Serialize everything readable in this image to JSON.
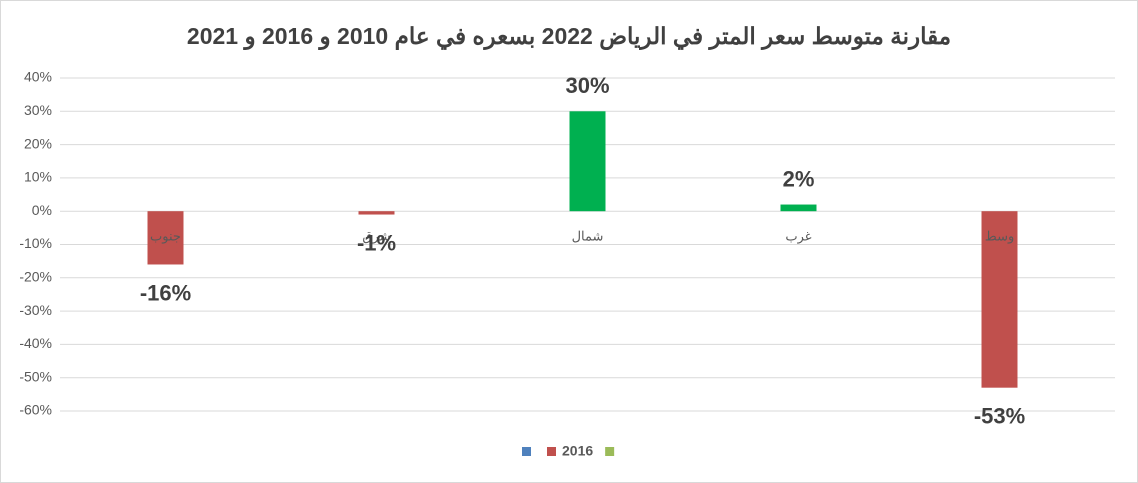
{
  "chart_data": {
    "type": "bar",
    "title": "مقارنة متوسط سعر المتر في الرياض 2022 بسعره في عام 2010 و 2016 و 2021",
    "categories": [
      "جنوب",
      "شرق",
      "شمال",
      "غرب",
      "وسط"
    ],
    "values": [
      -16,
      -1,
      30,
      2,
      -53
    ],
    "value_labels": [
      "-16%",
      "-1%",
      "30%",
      "2%",
      "-53%"
    ],
    "colors": [
      "#c0504d",
      "#c0504d",
      "#00b050",
      "#00b050",
      "#c0504d"
    ],
    "ylim": [
      -60,
      40
    ],
    "yticks": [
      {
        "value": 40,
        "label": "40%"
      },
      {
        "value": 30,
        "label": "30%"
      },
      {
        "value": 20,
        "label": "20%"
      },
      {
        "value": 10,
        "label": "10%"
      },
      {
        "value": 0,
        "label": "0%"
      },
      {
        "value": -10,
        "label": "-10%"
      },
      {
        "value": -20,
        "label": "-20%"
      },
      {
        "value": -30,
        "label": "-30%"
      },
      {
        "value": -40,
        "label": "-40%"
      },
      {
        "value": -50,
        "label": "-50%"
      },
      {
        "value": -60,
        "label": "-60%"
      }
    ],
    "grid": true,
    "legend": [
      {
        "color": "#4f81bd"
      },
      {
        "name": "2016",
        "color": "#c0504d"
      },
      {
        "color": "#9bbb59"
      }
    ]
  }
}
